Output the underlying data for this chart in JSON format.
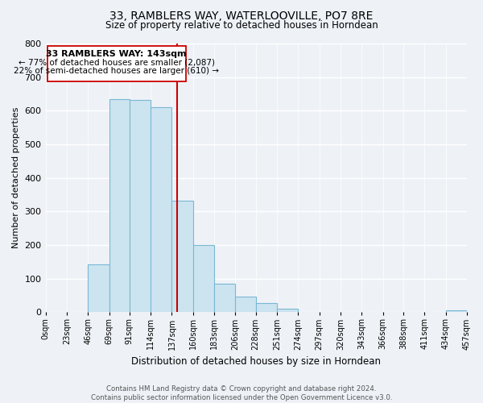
{
  "title": "33, RAMBLERS WAY, WATERLOOVILLE, PO7 8RE",
  "subtitle": "Size of property relative to detached houses in Horndean",
  "xlabel": "Distribution of detached houses by size in Horndean",
  "ylabel": "Number of detached properties",
  "bar_color": "#cce4f0",
  "bar_edge_color": "#7ab8d4",
  "background_color": "#eef2f7",
  "grid_color": "#ffffff",
  "bin_edges": [
    0,
    23,
    46,
    69,
    91,
    114,
    137,
    160,
    183,
    206,
    228,
    251,
    274,
    297,
    320,
    343,
    366,
    388,
    411,
    434,
    457
  ],
  "bin_labels": [
    "0sqm",
    "23sqm",
    "46sqm",
    "69sqm",
    "91sqm",
    "114sqm",
    "137sqm",
    "160sqm",
    "183sqm",
    "206sqm",
    "228sqm",
    "251sqm",
    "274sqm",
    "297sqm",
    "320sqm",
    "343sqm",
    "366sqm",
    "388sqm",
    "411sqm",
    "434sqm",
    "457sqm"
  ],
  "counts": [
    0,
    0,
    143,
    635,
    632,
    610,
    333,
    200,
    84,
    46,
    27,
    11,
    0,
    0,
    0,
    0,
    0,
    0,
    0,
    5
  ],
  "property_line_x": 143,
  "annotation_title": "33 RAMBLERS WAY: 143sqm",
  "annotation_line1": "← 77% of detached houses are smaller (2,087)",
  "annotation_line2": "22% of semi-detached houses are larger (610) →",
  "ylim": [
    0,
    800
  ],
  "yticks": [
    0,
    100,
    200,
    300,
    400,
    500,
    600,
    700,
    800
  ],
  "footer_line1": "Contains HM Land Registry data © Crown copyright and database right 2024.",
  "footer_line2": "Contains public sector information licensed under the Open Government Licence v3.0."
}
